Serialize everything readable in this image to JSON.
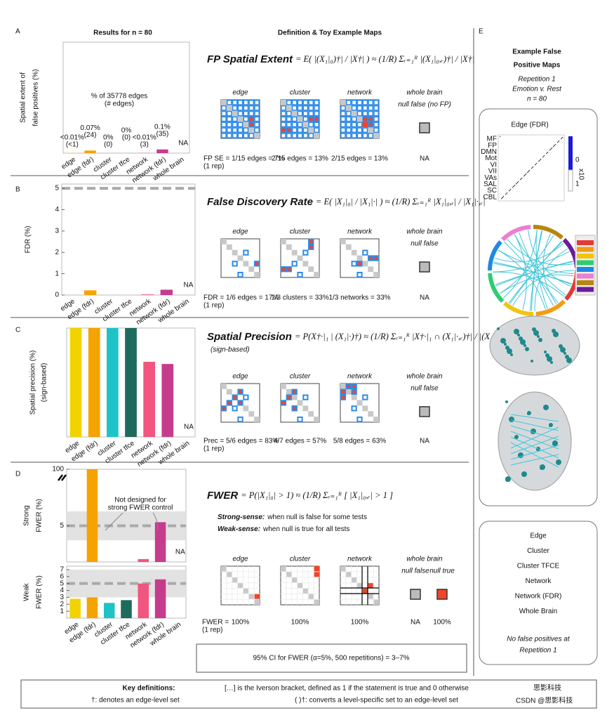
{
  "header": {
    "results_title": "Results for n = 80",
    "definition_title": "Definition & Toy Example Maps"
  },
  "chart_data": [
    {
      "type": "bar",
      "ylabel": [
        "Spatial extent of",
        "false positives (%)"
      ],
      "categories": [
        "edge",
        "edge (fdr)",
        "cluster",
        "cluster tfce",
        "network",
        "network (fdr)",
        "whole brain"
      ],
      "values": [
        0.005,
        0.07,
        0,
        0,
        0.005,
        0.1,
        null
      ],
      "value_labels": [
        "<0.01%",
        "0.07%",
        "0%",
        "0%",
        "<0.01%",
        "0.1%",
        null
      ],
      "count_labels": [
        "(<1)",
        "(24)",
        "(0)",
        "(0)",
        "(3)",
        "(35)",
        null
      ],
      "colors": [
        "#f2d300",
        "#f5a300",
        "#1ec3c8",
        "#1d6b5d",
        "#f2557f",
        "#c63c8c",
        "#999999"
      ],
      "ylim": [
        0,
        3
      ],
      "annotation": [
        "% of 35778 edges",
        "(# edges)"
      ],
      "na_label": "NA"
    },
    {
      "type": "bar",
      "ylabel": [
        "FDR (%)"
      ],
      "categories": [
        "edge",
        "edge (fdr)",
        "cluster",
        "cluster tfce",
        "network",
        "network (fdr)",
        "whole brain"
      ],
      "values": [
        0,
        0.22,
        0,
        0,
        0.03,
        0.25,
        null
      ],
      "colors": [
        "#f2d300",
        "#f5a300",
        "#1ec3c8",
        "#1d6b5d",
        "#f2557f",
        "#c63c8c",
        "#999999"
      ],
      "ylim": [
        0,
        5.2
      ],
      "yticks": [
        0,
        1,
        2,
        3,
        4,
        5
      ],
      "nominal": 5,
      "na_label": "NA"
    },
    {
      "type": "bar",
      "ylabel": [
        "Spatial precision (%)"
      ],
      "ylabel_sub": "(sign-based)",
      "categories": [
        "edge",
        "edge (fdr)",
        "cluster",
        "cluster tfce",
        "network",
        "network (fdr)",
        "whole brain"
      ],
      "values": [
        100,
        100,
        100,
        100,
        69,
        67,
        null
      ],
      "colors": [
        "#f2d300",
        "#f5a300",
        "#1ec3c8",
        "#1d6b5d",
        "#f2557f",
        "#c63c8c",
        "#999999"
      ],
      "ylim": [
        0,
        100
      ],
      "na_label": "NA"
    },
    {
      "type": "bar",
      "ylabel": [
        "Strong",
        "FWER (%)"
      ],
      "values": [
        0,
        100,
        0,
        0,
        0.4,
        5.5,
        null
      ],
      "colors": [
        "#f2d300",
        "#f5a300",
        "#1ec3c8",
        "#1d6b5d",
        "#f2557f",
        "#c63c8c",
        "#999999"
      ],
      "ylim": [
        0,
        100
      ],
      "ylim_lower": [
        0,
        10
      ],
      "yticks": [
        5,
        100
      ],
      "ci_band": [
        3,
        7
      ],
      "nominal": 5,
      "annotation": [
        "Not designed for",
        "strong FWER control"
      ],
      "na_label": "NA"
    },
    {
      "type": "bar",
      "ylabel": [
        "Weak",
        "FWER (%)"
      ],
      "categories": [
        "edge",
        "edge (fdr)",
        "cluster",
        "cluster tfce",
        "network",
        "network (fdr)",
        "whole brain"
      ],
      "values": [
        2.8,
        3.0,
        2.2,
        2.6,
        5.0,
        5.6,
        null
      ],
      "colors": [
        "#f2d300",
        "#f5a300",
        "#1ec3c8",
        "#1d6b5d",
        "#f2557f",
        "#c63c8c",
        "#999999"
      ],
      "ylim": [
        0,
        7.5
      ],
      "yticks": [
        1,
        2,
        3,
        4,
        5,
        6,
        7
      ],
      "ci_band": [
        3,
        7
      ],
      "nominal": 5
    }
  ],
  "panels": [
    {
      "label": "A",
      "name": "FP Spatial Extent",
      "equation": "= E( |(X₁|₀)†| / |X†| ) ≈ (1/R) Σᵣ₌₁ᴿ |(X₁|₀,ᵣ)†| / |X†|",
      "map_titles": [
        "edge",
        "cluster",
        "network",
        "whole brain"
      ],
      "wb_notes": [
        "null false (no FP)"
      ],
      "captions": [
        "FP SE = 1/15 edges = 7%",
        "2/15 edges = 13%",
        "2/15 edges = 13%"
      ],
      "wb_captions": [
        "NA"
      ],
      "rep": "(1 rep)"
    },
    {
      "label": "B",
      "name": "False Discovery Rate",
      "equation": "= E( |X₁|₀| / |X₁|·| ) ≈ (1/R) Σᵣ₌₁ᴿ |X₁|₀,ᵣ| / |X₁|·,ᵣ|",
      "map_titles": [
        "edge",
        "cluster",
        "network",
        "whole brain"
      ],
      "wb_notes": [
        "null false"
      ],
      "captions": [
        "FDR = 1/6 edges = 17%",
        "1/3 clusters = 33%",
        "1/3 networks = 33%"
      ],
      "wb_captions": [
        "NA"
      ],
      "rep": "(1 rep)"
    },
    {
      "label": "C",
      "name": "Spatial Precision",
      "subtitle": "(sign-based)",
      "equation": "= P(X†·|₁ | (X₁|·)†) ≈ (1/R) Σᵣ₌₁ᴿ |X†·|₁ ∩ (X₁|·,ᵣ)†| / |(X₁|·,ᵣ)†|",
      "map_titles": [
        "edge",
        "cluster",
        "network",
        "whole brain"
      ],
      "wb_notes": [
        "null false"
      ],
      "captions": [
        "Prec = 5/6 edges = 83%",
        "4/7 edges = 57%",
        "5/8 edges = 63%"
      ],
      "wb_captions": [
        "NA"
      ],
      "rep": "(1 rep)"
    },
    {
      "label": "D",
      "name": "FWER",
      "equation": "= P(|X₁|₀| > 1) ≈ (1/R) Σᵣ₌₁ᴿ [ |X₁|₀,ᵣ| > 1 ]",
      "senses": [
        [
          "Strong-sense:",
          "when null is false for some tests"
        ],
        [
          "Weak-sense:",
          "when null is true for all tests"
        ]
      ],
      "map_titles": [
        "edge",
        "cluster",
        "network",
        "whole brain"
      ],
      "wb_notes": [
        "null false",
        "null true"
      ],
      "prefix": "FWER =",
      "captions": [
        "100%",
        "100%",
        "100%"
      ],
      "wb_captions": [
        "NA",
        "100%"
      ],
      "rep": "(1 rep)",
      "ci_text": "95% CI for FWER (α=5%, 500 repetitions) = 3–7%"
    }
  ],
  "panel_e": {
    "label": "E",
    "title_lines": [
      "Example False",
      "Positive Maps"
    ],
    "subtitle_lines": [
      "Repetition 1",
      "Emotion v. Rest",
      "n = 80"
    ],
    "map_title": "Edge (FDR)",
    "matrix_labels": [
      "MF",
      "FP",
      "DMN",
      "Mot",
      "VI",
      "VII",
      "VAs",
      "SAL",
      "SC",
      "CBL"
    ],
    "colorbar_labels": [
      "0",
      "1"
    ],
    "colorbar_scale": "x10",
    "methods": [
      "Edge",
      "Cluster",
      "Cluster TFCE",
      "Network",
      "Network (FDR)",
      "Whole Brain"
    ],
    "note_lines": [
      "No false positives at",
      "Repetition 1"
    ]
  },
  "footer": {
    "title": "Key definitions:",
    "items": [
      "[…] is the Iverson bracket, defined as 1 if the statement is true and 0 otherwise",
      "†: denotes an edge-level set",
      "( )†: converts a level-specific set to an edge-level set"
    ]
  },
  "watermark": [
    "思影科技",
    "CSDN @思影科技"
  ]
}
